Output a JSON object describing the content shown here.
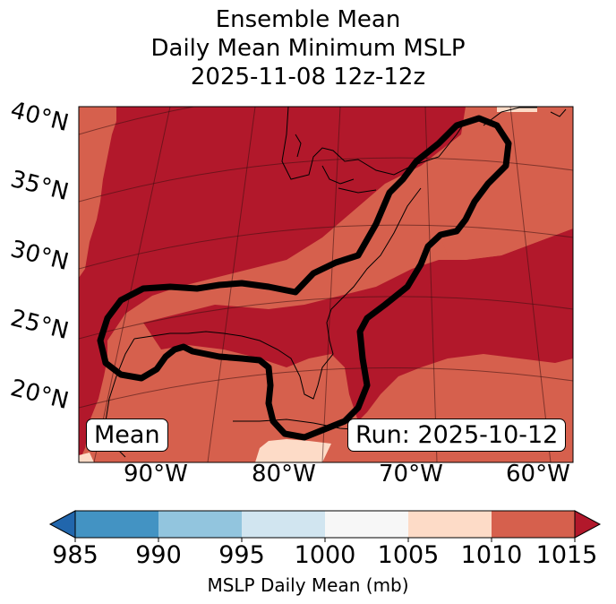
{
  "title": {
    "line1": "Ensemble Mean",
    "line2": "Daily Mean Minimum MSLP",
    "line3": "2025-11-08 12z-12z"
  },
  "map": {
    "lat_labels": [
      "40°N",
      "35°N",
      "30°N",
      "25°N",
      "20°N"
    ],
    "lon_labels": [
      "90°W",
      "80°W",
      "70°W",
      "60°W"
    ],
    "badge_left": "Mean",
    "badge_right": "Run: 2025-10-12",
    "contour_color": "#000000",
    "palette": {
      "lt_985": "#2166ac",
      "r985_990": "#4393c3",
      "r990_995": "#92c5de",
      "r995_1000": "#d1e5f0",
      "r1000_1005": "#f7f7f7",
      "r1005_1010": "#fddbc7",
      "r1010_1015": "#d6604d",
      "gt_1015": "#b2182b"
    }
  },
  "colorbar": {
    "ticks": [
      "985",
      "990",
      "995",
      "1000",
      "1005",
      "1010",
      "1015"
    ],
    "label": "MSLP Daily Mean (mb)",
    "colors": [
      "#4393c3",
      "#92c5de",
      "#d1e5f0",
      "#f7f7f7",
      "#fddbc7",
      "#d6604d"
    ],
    "under_color": "#2166ac",
    "over_color": "#b2182b"
  }
}
